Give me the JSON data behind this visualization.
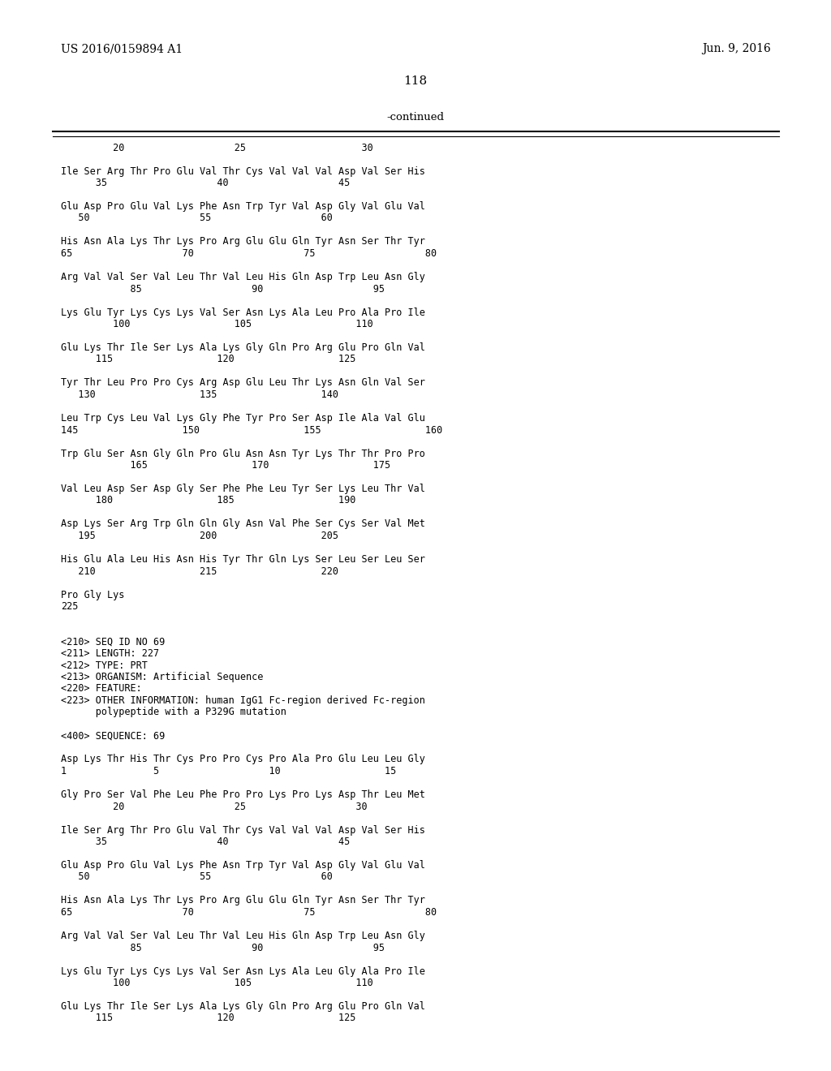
{
  "header_left": "US 2016/0159894 A1",
  "header_right": "Jun. 9, 2016",
  "page_number": "118",
  "continued_label": "-continued",
  "background_color": "#ffffff",
  "text_color": "#000000",
  "lines": [
    "         20                   25                    30",
    "",
    "Ile Ser Arg Thr Pro Glu Val Thr Cys Val Val Val Asp Val Ser His",
    "      35                   40                   45",
    "",
    "Glu Asp Pro Glu Val Lys Phe Asn Trp Tyr Val Asp Gly Val Glu Val",
    "   50                   55                   60",
    "",
    "His Asn Ala Lys Thr Lys Pro Arg Glu Glu Gln Tyr Asn Ser Thr Tyr",
    "65                   70                   75                   80",
    "",
    "Arg Val Val Ser Val Leu Thr Val Leu His Gln Asp Trp Leu Asn Gly",
    "            85                   90                   95",
    "",
    "Lys Glu Tyr Lys Cys Lys Val Ser Asn Lys Ala Leu Pro Ala Pro Ile",
    "         100                  105                  110",
    "",
    "Glu Lys Thr Ile Ser Lys Ala Lys Gly Gln Pro Arg Glu Pro Gln Val",
    "      115                  120                  125",
    "",
    "Tyr Thr Leu Pro Pro Cys Arg Asp Glu Leu Thr Lys Asn Gln Val Ser",
    "   130                  135                  140",
    "",
    "Leu Trp Cys Leu Val Lys Gly Phe Tyr Pro Ser Asp Ile Ala Val Glu",
    "145                  150                  155                  160",
    "",
    "Trp Glu Ser Asn Gly Gln Pro Glu Asn Asn Tyr Lys Thr Thr Pro Pro",
    "            165                  170                  175",
    "",
    "Val Leu Asp Ser Asp Gly Ser Phe Phe Leu Tyr Ser Lys Leu Thr Val",
    "      180                  185                  190",
    "",
    "Asp Lys Ser Arg Trp Gln Gln Gly Asn Val Phe Ser Cys Ser Val Met",
    "   195                  200                  205",
    "",
    "His Glu Ala Leu His Asn His Tyr Thr Gln Lys Ser Leu Ser Leu Ser",
    "   210                  215                  220",
    "",
    "Pro Gly Lys",
    "225",
    "",
    "",
    "<210> SEQ ID NO 69",
    "<211> LENGTH: 227",
    "<212> TYPE: PRT",
    "<213> ORGANISM: Artificial Sequence",
    "<220> FEATURE:",
    "<223> OTHER INFORMATION: human IgG1 Fc-region derived Fc-region",
    "      polypeptide with a P329G mutation",
    "",
    "<400> SEQUENCE: 69",
    "",
    "Asp Lys Thr His Thr Cys Pro Pro Cys Pro Ala Pro Glu Leu Leu Gly",
    "1               5                   10                  15",
    "",
    "Gly Pro Ser Val Phe Leu Phe Pro Pro Lys Pro Lys Asp Thr Leu Met",
    "         20                   25                   30",
    "",
    "Ile Ser Arg Thr Pro Glu Val Thr Cys Val Val Val Asp Val Ser His",
    "      35                   40                   45",
    "",
    "Glu Asp Pro Glu Val Lys Phe Asn Trp Tyr Val Asp Gly Val Glu Val",
    "   50                   55                   60",
    "",
    "His Asn Ala Lys Thr Lys Pro Arg Glu Glu Gln Tyr Asn Ser Thr Tyr",
    "65                   70                   75                   80",
    "",
    "Arg Val Val Ser Val Leu Thr Val Leu His Gln Asp Trp Leu Asn Gly",
    "            85                   90                   95",
    "",
    "Lys Glu Tyr Lys Cys Lys Val Ser Asn Lys Ala Leu Gly Ala Pro Ile",
    "         100                  105                  110",
    "",
    "Glu Lys Thr Ile Ser Lys Ala Lys Gly Gln Pro Arg Glu Pro Gln Val",
    "      115                  120                  125"
  ]
}
